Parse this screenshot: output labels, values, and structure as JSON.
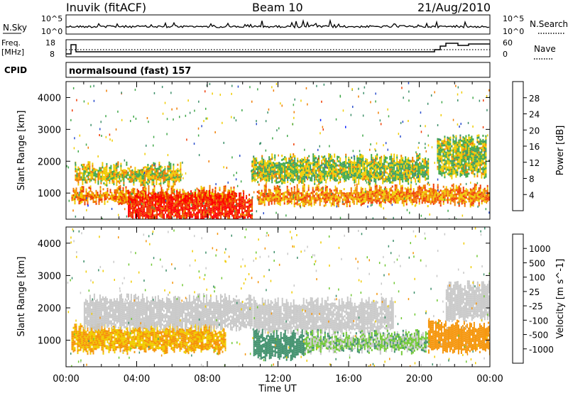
{
  "header": {
    "station": "Inuvik (fitACF)",
    "beam": "Beam 10",
    "date": "21/Aug/2010"
  },
  "noise_panel": {
    "left_label": "N.Sky",
    "right_label": "N.Search",
    "left_ticks": [
      "10^5",
      "10^0"
    ],
    "right_ticks": [
      "10^5",
      "10^0"
    ]
  },
  "freq_panel": {
    "left_label_1": "Freq.",
    "left_label_2": "[MHz]",
    "left_ticks": [
      "18",
      "8"
    ],
    "right_ticks": [
      "60",
      "0"
    ],
    "right_label": "Nave"
  },
  "cpid_panel": {
    "label": "CPID",
    "text": "normalsound (fast) 157"
  },
  "power_colorbar": {
    "label": "Power [dB]",
    "ticks": [
      "4",
      "8",
      "12",
      "16",
      "20",
      "24",
      "28"
    ],
    "colors": [
      "#0019ff",
      "#2a4dcc",
      "#3d8f6a",
      "#41a84a",
      "#f0cc00",
      "#f07d00",
      "#f03a00",
      "#ff0000"
    ]
  },
  "velocity_colorbar": {
    "label": "Velocity [m s^-1]",
    "ticks": [
      "-1000",
      "-500",
      "-100",
      "-25",
      "25",
      "100",
      "500",
      "1000"
    ],
    "colors": [
      "#ff0000",
      "#f04500",
      "#f5950a",
      "#f0cc00",
      "#c8c8c8",
      "#6fc832",
      "#3d8f6a",
      "#2a4dcc",
      "#1010e0"
    ]
  },
  "chart_data": [
    {
      "type": "heatmap",
      "title": "",
      "ylabel": "Slant Range [km]",
      "xlabel": "",
      "ylim": [
        180,
        4500
      ],
      "y_ticks": [
        1000,
        2000,
        3000,
        4000
      ],
      "x_range_hours": [
        0,
        24
      ],
      "colorbar_label": "Power [dB]",
      "echo_bands": [
        {
          "t_start": 0.5,
          "t_end": 6.5,
          "range_low": 1350,
          "range_high": 1850,
          "value": 18
        },
        {
          "t_start": 0.3,
          "t_end": 9.5,
          "range_low": 750,
          "range_high": 1100,
          "value": 22
        },
        {
          "t_start": 3.5,
          "t_end": 10.5,
          "range_low": 200,
          "range_high": 950,
          "value": 28
        },
        {
          "t_start": 10.5,
          "t_end": 20.5,
          "range_low": 1400,
          "range_high": 2100,
          "value": 16
        },
        {
          "t_start": 10.8,
          "t_end": 24,
          "range_low": 700,
          "range_high": 1150,
          "value": 22
        },
        {
          "t_start": 21,
          "t_end": 23.8,
          "range_low": 1600,
          "range_high": 2700,
          "value": 16
        }
      ]
    },
    {
      "type": "heatmap",
      "title": "",
      "ylabel": "Slant Range [km]",
      "xlabel": "Time UT",
      "ylim": [
        180,
        4500
      ],
      "y_ticks": [
        1000,
        2000,
        3000,
        4000
      ],
      "x_range_hours": [
        0,
        24
      ],
      "x_tick_labels": [
        "00:00",
        "04:00",
        "08:00",
        "12:00",
        "16:00",
        "20:00",
        "00:00"
      ],
      "colorbar_label": "Velocity [m s^-1]",
      "echo_bands": [
        {
          "t_start": 0.3,
          "t_end": 9.0,
          "range_low": 700,
          "range_high": 1400,
          "value": -100
        },
        {
          "t_start": 1.0,
          "t_end": 10.5,
          "range_low": 1400,
          "range_high": 2300,
          "value": 0
        },
        {
          "t_start": 10.6,
          "t_end": 18.5,
          "range_low": 1300,
          "range_high": 2200,
          "value": 0
        },
        {
          "t_start": 10.6,
          "t_end": 13.5,
          "range_low": 500,
          "range_high": 1200,
          "value": 300
        },
        {
          "t_start": 13.5,
          "t_end": 20.5,
          "range_low": 700,
          "range_high": 1200,
          "value": 50
        },
        {
          "t_start": 20.5,
          "t_end": 24,
          "range_low": 700,
          "range_high": 1500,
          "value": -300
        },
        {
          "t_start": 21.5,
          "t_end": 24,
          "range_low": 1700,
          "range_high": 2700,
          "value": 0
        }
      ]
    }
  ]
}
